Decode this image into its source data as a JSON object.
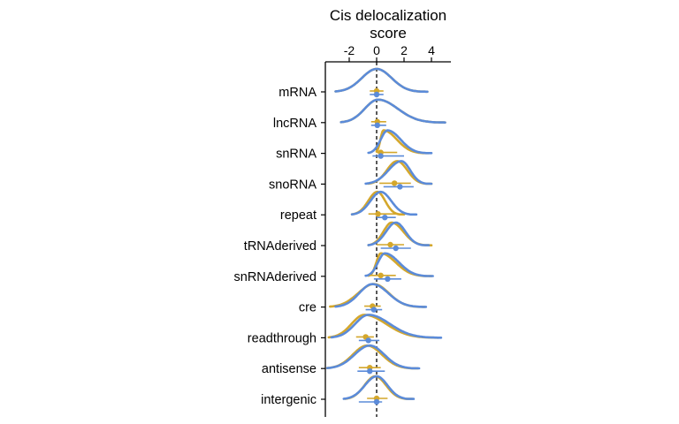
{
  "chart_data": {
    "type": "ridgeline",
    "title": "Cis delocalization score",
    "title_lines": [
      "Cis delocalization",
      "score"
    ],
    "xlabel": "Cis delocalization score",
    "ylabel": "",
    "xlim": [
      -3.7,
      5.5
    ],
    "x_ticks": [
      -2,
      0,
      2,
      4
    ],
    "x_tick_labels": [
      "-2",
      "0",
      "2",
      "4"
    ],
    "x_axis_position": "top",
    "reference_line": {
      "x": 0,
      "style": "dashed"
    },
    "grid": false,
    "legend": "none",
    "colors": {
      "gold": "#d4a72c",
      "blue": "#5b8bd9",
      "axis": "#000000"
    },
    "categories": [
      "mRNA",
      "lncRNA",
      "snRNA",
      "snoRNA",
      "repeat",
      "tRNAderived",
      "snRNAderived",
      "cre",
      "readthrough",
      "antisense",
      "intergenic"
    ],
    "series": [
      {
        "color": "#d4a72c",
        "distributions": [
          {
            "range": [
              -3.0,
              3.7
            ],
            "peak": 0.0,
            "median": 0.0,
            "interval": [
              -0.5,
              0.5
            ]
          },
          {
            "range": [
              -2.6,
              5.0
            ],
            "peak": 0.1,
            "median": 0.05,
            "interval": [
              -0.4,
              0.7
            ]
          },
          {
            "range": [
              0.0,
              3.8
            ],
            "peak": 0.5,
            "median": 0.3,
            "interval": [
              0.0,
              1.5
            ]
          },
          {
            "range": [
              -0.6,
              4.0
            ],
            "peak": 1.5,
            "median": 1.3,
            "interval": [
              0.2,
              2.5
            ]
          },
          {
            "range": [
              -1.8,
              2.0
            ],
            "peak": 0.05,
            "median": 0.1,
            "interval": [
              -0.6,
              1.6
            ]
          },
          {
            "range": [
              -0.6,
              4.0
            ],
            "peak": 1.1,
            "median": 1.0,
            "interval": [
              0.0,
              2.0
            ]
          },
          {
            "range": [
              -0.6,
              4.0
            ],
            "peak": 0.3,
            "median": 0.3,
            "interval": [
              -0.5,
              1.4
            ]
          },
          {
            "range": [
              -3.4,
              3.5
            ],
            "peak": -0.2,
            "median": -0.3,
            "interval": [
              -0.9,
              0.3
            ]
          },
          {
            "range": [
              -3.5,
              4.5
            ],
            "peak": -0.9,
            "median": -0.8,
            "interval": [
              -1.5,
              -0.2
            ]
          },
          {
            "range": [
              -3.6,
              3.0
            ],
            "peak": -0.7,
            "median": -0.5,
            "interval": [
              -1.3,
              0.3
            ]
          },
          {
            "range": [
              -2.3,
              2.6
            ],
            "peak": -0.1,
            "median": 0.0,
            "interval": [
              -0.7,
              0.8
            ]
          }
        ]
      },
      {
        "color": "#5b8bd9",
        "distributions": [
          {
            "range": [
              -3.0,
              3.7
            ],
            "peak": 0.0,
            "median": 0.0,
            "interval": [
              -0.5,
              0.5
            ]
          },
          {
            "range": [
              -2.6,
              5.0
            ],
            "peak": 0.1,
            "median": 0.05,
            "interval": [
              -0.4,
              0.7
            ]
          },
          {
            "range": [
              -0.6,
              4.0
            ],
            "peak": 0.8,
            "median": 0.3,
            "interval": [
              -0.3,
              2.0
            ]
          },
          {
            "range": [
              -0.8,
              4.0
            ],
            "peak": 1.8,
            "median": 1.7,
            "interval": [
              0.5,
              2.7
            ]
          },
          {
            "range": [
              -1.8,
              2.9
            ],
            "peak": 0.3,
            "median": 0.6,
            "interval": [
              0.0,
              1.4
            ]
          },
          {
            "range": [
              -0.6,
              3.8
            ],
            "peak": 1.4,
            "median": 1.4,
            "interval": [
              0.3,
              2.5
            ]
          },
          {
            "range": [
              -0.8,
              4.1
            ],
            "peak": 0.6,
            "median": 0.8,
            "interval": [
              -0.2,
              1.8
            ]
          },
          {
            "range": [
              -3.0,
              3.6
            ],
            "peak": -0.3,
            "median": -0.2,
            "interval": [
              -0.8,
              0.4
            ]
          },
          {
            "range": [
              -3.3,
              4.7
            ],
            "peak": -0.6,
            "median": -0.6,
            "interval": [
              -1.3,
              0.2
            ]
          },
          {
            "range": [
              -3.6,
              3.1
            ],
            "peak": -0.5,
            "median": -0.5,
            "interval": [
              -1.4,
              0.6
            ]
          },
          {
            "range": [
              -2.4,
              2.7
            ],
            "peak": 0.0,
            "median": 0.0,
            "interval": [
              -1.3,
              0.4
            ]
          }
        ]
      }
    ]
  }
}
